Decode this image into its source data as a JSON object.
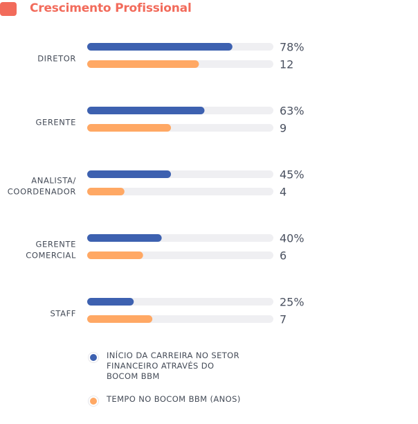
{
  "header": {
    "title": "Crescimento Profissional"
  },
  "colors": {
    "accent": "#f26b5b",
    "series1": "#3d61b0",
    "series2": "#ffa864",
    "track": "#efeff2"
  },
  "chart_data": {
    "type": "bar",
    "orientation": "horizontal",
    "title": "Crescimento Profissional",
    "categories": [
      [
        "DIRETOR"
      ],
      [
        "GERENTE"
      ],
      [
        "ANALISTA/",
        "COORDENADOR"
      ],
      [
        "GERENTE",
        "COMERCIAL"
      ],
      [
        "STAFF"
      ]
    ],
    "series": [
      {
        "name": "INÍCIO DA CARREIRA NO SETOR FINANCEIRO ATRAVÉS DO BOCOM BBM",
        "values": [
          78,
          63,
          45,
          40,
          25
        ],
        "value_labels": [
          "78%",
          "63%",
          "45%",
          "40%",
          "25%"
        ],
        "color": "#3d61b0"
      },
      {
        "name": "TEMPO NO BOCOM BBM (ANOS)",
        "values": [
          12,
          9,
          4,
          6,
          7
        ],
        "value_labels": [
          "12",
          "9",
          "4",
          "6",
          "7"
        ],
        "color": "#ffa864"
      }
    ],
    "xlim_series1": [
      0,
      100
    ],
    "xlim_series2": [
      0,
      20
    ],
    "grid": false,
    "legend": "bottom"
  },
  "legend": {
    "items": [
      {
        "lines": [
          "INÍCIO DA CARREIRA NO SETOR",
          "FINANCEIRO ATRAVÉS DO",
          "BOCOM BBM"
        ],
        "color": "#3d61b0"
      },
      {
        "lines": [
          "TEMPO NO BOCOM BBM (ANOS)"
        ],
        "color": "#ffa864"
      }
    ]
  }
}
